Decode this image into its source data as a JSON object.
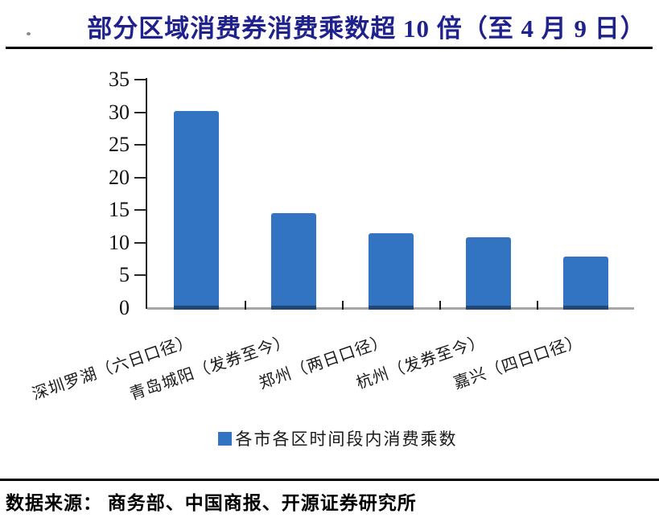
{
  "page": {
    "title": "部分区域消费券消费乘数超 10 倍（至 4 月 9 日）",
    "title_color": "#1F218C",
    "source_note": "数据来源： 商务部、中国商报、开源证券研究所"
  },
  "legend": {
    "label": "各市各区时间段内消费乘数",
    "swatch_color": "#3273C2"
  },
  "chart_data": {
    "type": "bar",
    "title": "部分区域消费券消费乘数超 10 倍（至 4 月 9 日）",
    "categories": [
      "深圳罗湖（六日口径）",
      "青岛城阳（发券至今）",
      "郑州（两日口径）",
      "杭州（发券至今）",
      "嘉兴（四日口径）"
    ],
    "values": [
      30.2,
      14.5,
      11.4,
      10.9,
      7.9
    ],
    "series_name": "各市各区时间段内消费乘数",
    "y_ticks": [
      0,
      5,
      10,
      15,
      20,
      25,
      30,
      35
    ],
    "ylim": [
      0,
      35
    ],
    "xlabel": "",
    "ylabel": "",
    "grid": false,
    "legend_position": "bottom",
    "bar_color": "#3273C2",
    "bar_base_color": "#1F4675",
    "axis_color": "#262626",
    "baseline_color": "#A6A6A6"
  }
}
